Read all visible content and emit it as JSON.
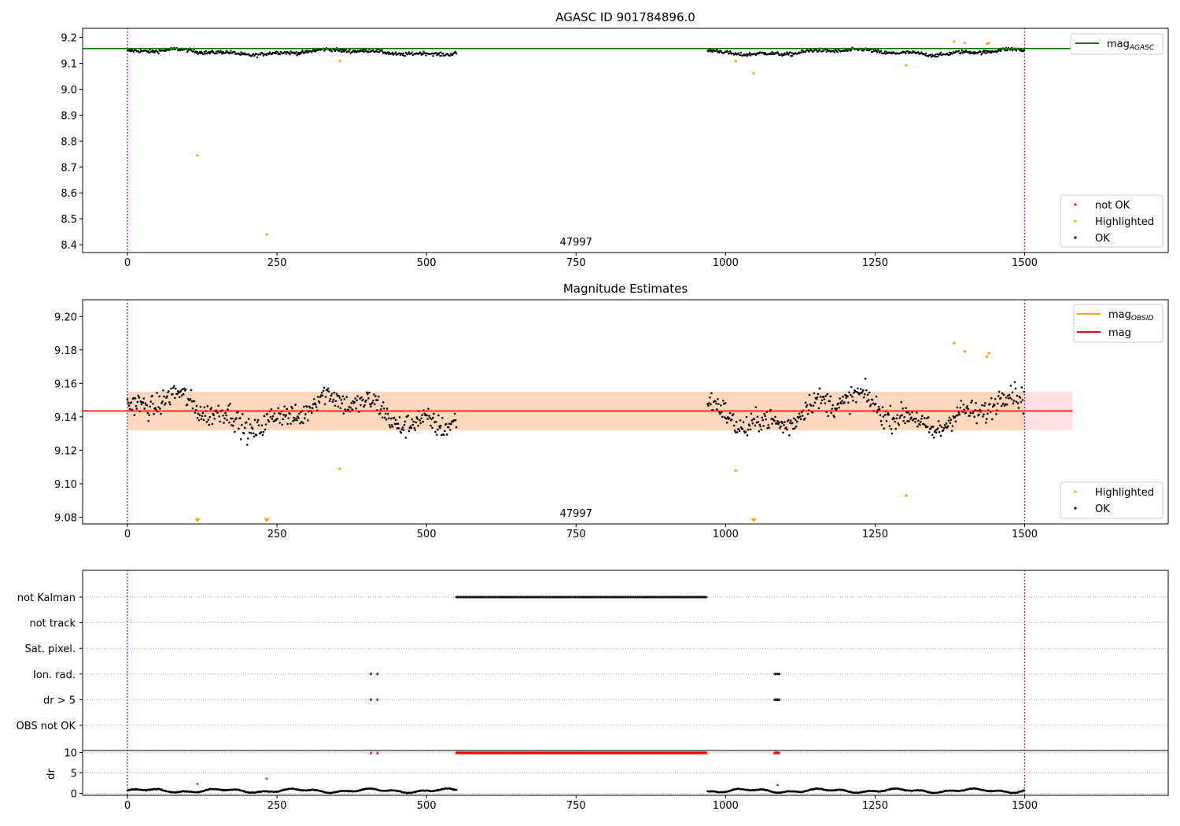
{
  "figure": {
    "title": "AGASC ID 901784896.0"
  },
  "chart_data": [
    {
      "type": "scatter",
      "title": "",
      "xlim": [
        -75,
        1740
      ],
      "ylim": [
        8.37,
        9.235
      ],
      "xticks": [
        0,
        250,
        500,
        750,
        1000,
        1250,
        1500
      ],
      "yticks": [
        8.4,
        8.5,
        8.6,
        8.7,
        8.8,
        8.9,
        9.0,
        9.1,
        9.2
      ],
      "obsid_label": "47997",
      "obsid_label_x": 750,
      "obs_boundaries": [
        0,
        1500
      ],
      "mag_agasc": 9.157,
      "segments": [
        [
          0,
          550
        ],
        [
          970,
          1500
        ]
      ],
      "ok_level": 9.143,
      "highlighted": [
        {
          "x": 117,
          "y": 8.745
        },
        {
          "x": 233,
          "y": 8.44
        },
        {
          "x": 355,
          "y": 9.109
        },
        {
          "x": 1017,
          "y": 9.108
        },
        {
          "x": 1047,
          "y": 9.062
        },
        {
          "x": 1302,
          "y": 9.093
        },
        {
          "x": 1382,
          "y": 9.184
        },
        {
          "x": 1400,
          "y": 9.179
        },
        {
          "x": 1437,
          "y": 9.176
        },
        {
          "x": 1440,
          "y": 9.178
        }
      ],
      "legend_lines": [
        {
          "label": "mag",
          "subscript": "AGASC",
          "color": "#008000"
        }
      ],
      "legend_points": [
        {
          "label": "not OK",
          "color": "#ff0000"
        },
        {
          "label": "Highlighted",
          "color": "#ffa500"
        },
        {
          "label": "OK",
          "color": "#000000"
        }
      ]
    },
    {
      "type": "scatter",
      "title": "Magnitude Estimates",
      "xlim": [
        -75,
        1740
      ],
      "ylim": [
        9.076,
        9.21
      ],
      "xticks": [
        0,
        250,
        500,
        750,
        1000,
        1250,
        1500
      ],
      "yticks": [
        9.08,
        9.1,
        9.12,
        9.14,
        9.16,
        9.18,
        9.2
      ],
      "obsid_label": "47997",
      "obsid_label_x": 750,
      "obs_boundaries": [
        0,
        1500
      ],
      "mag_mean": 9.1435,
      "band_obsid": [
        9.132,
        9.155
      ],
      "band_mag": [
        9.132,
        9.155
      ],
      "band_end_x": 1580,
      "highlighted": [
        {
          "x": 355,
          "y": 9.109
        },
        {
          "x": 1017,
          "y": 9.108
        },
        {
          "x": 1302,
          "y": 9.093
        },
        {
          "x": 1382,
          "y": 9.184
        },
        {
          "x": 1400,
          "y": 9.179
        },
        {
          "x": 1437,
          "y": 9.176
        },
        {
          "x": 1440,
          "y": 9.178
        }
      ],
      "below_range_markers": [
        117,
        233,
        1047
      ],
      "legend_lines": [
        {
          "label": "mag",
          "subscript": "OBSID",
          "color": "#ffa500"
        },
        {
          "label": "mag",
          "subscript": "",
          "color": "#ff0000"
        }
      ],
      "legend_points": [
        {
          "label": "Highlighted",
          "color": "#ffa500"
        },
        {
          "label": "OK",
          "color": "#000000"
        }
      ]
    },
    {
      "type": "scatter",
      "title": "",
      "categories": [
        "not Kalman",
        "not track",
        "Sat. pixel.",
        "Ion. rad.",
        "dr > 5",
        "OBS not OK"
      ],
      "flag_ranges": {
        "not Kalman": [
          [
            550,
            968
          ]
        ],
        "not track": [],
        "Sat. pixel.": [],
        "Ion. rad.": [
          [
            407,
            407
          ],
          [
            418,
            418
          ],
          [
            1082,
            1090
          ]
        ],
        "dr > 5": [
          [
            407,
            407
          ],
          [
            418,
            418
          ],
          [
            1082,
            1090
          ]
        ],
        "OBS not OK": []
      }
    },
    {
      "type": "scatter",
      "title": "",
      "ylabel": "dr",
      "xlim": [
        -75,
        1740
      ],
      "ylim": [
        -0.5,
        10.5
      ],
      "xticks": [
        0,
        250,
        500,
        750,
        1000,
        1250,
        1500
      ],
      "yticks": [
        0,
        5,
        10
      ],
      "clip_value": 10,
      "clipped_ranges": [
        [
          407,
          407
        ],
        [
          418,
          418
        ],
        [
          550,
          968
        ],
        [
          1082,
          1090
        ]
      ],
      "outliers": [
        {
          "x": 117,
          "y": 2.3
        },
        {
          "x": 233,
          "y": 3.6
        },
        {
          "x": 1087,
          "y": 2.0
        }
      ],
      "segments": [
        [
          0,
          550
        ],
        [
          970,
          1500
        ]
      ]
    }
  ]
}
